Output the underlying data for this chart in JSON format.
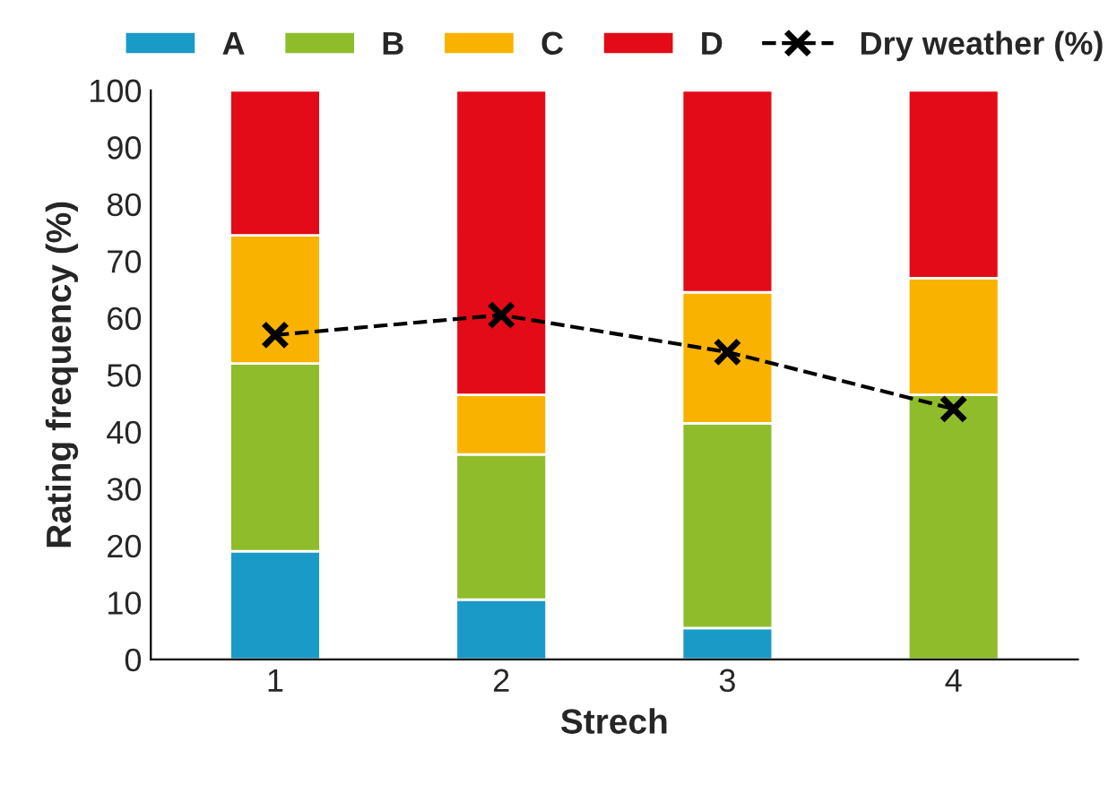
{
  "chart_data": {
    "type": "bar",
    "stacked": true,
    "xlabel": "Strech",
    "ylabel": "Rating frequency (%)",
    "categories": [
      "1",
      "2",
      "3",
      "4"
    ],
    "series": [
      {
        "name": "A",
        "color": "#1a9bc7",
        "values": [
          19,
          10.5,
          5.5,
          0
        ]
      },
      {
        "name": "B",
        "color": "#8fbc2a",
        "values": [
          33,
          25.5,
          36,
          46.5
        ]
      },
      {
        "name": "C",
        "color": "#f9b200",
        "values": [
          22.5,
          10.5,
          23,
          20.5
        ]
      },
      {
        "name": "D",
        "color": "#e30b17",
        "values": [
          25.5,
          53.5,
          35.5,
          33
        ]
      },
      {
        "name": "Dry weather (%)",
        "type": "line",
        "color": "#000000",
        "marker": "cross",
        "line_style": "dashed",
        "values": [
          57,
          60.5,
          54,
          44
        ]
      }
    ],
    "ylim": [
      0,
      100
    ],
    "yticks": [
      0,
      10,
      20,
      30,
      40,
      50,
      60,
      70,
      80,
      90,
      100
    ],
    "grid": false,
    "legend": "top"
  }
}
